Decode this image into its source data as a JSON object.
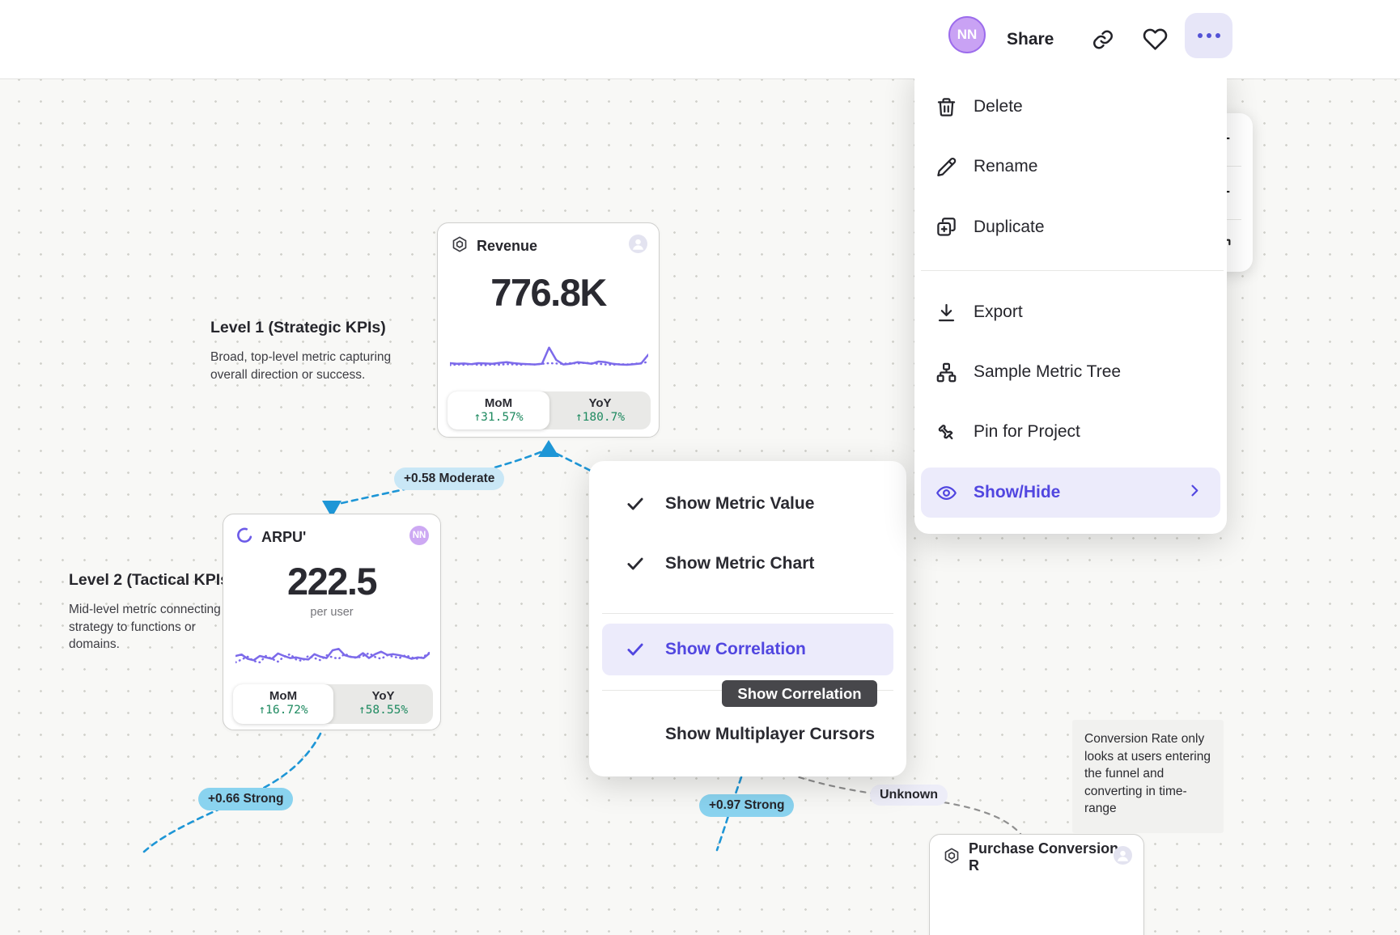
{
  "topbar": {
    "avatar": "NN",
    "share": "Share"
  },
  "menu": {
    "items": [
      {
        "label": "Delete"
      },
      {
        "label": "Rename"
      },
      {
        "label": "Duplicate"
      },
      {
        "label": "Export"
      },
      {
        "label": "Sample Metric Tree"
      },
      {
        "label": "Pin for Project"
      },
      {
        "label": "Show/Hide"
      }
    ]
  },
  "submenu": {
    "items": [
      {
        "label": "Show Metric Value",
        "checked": true
      },
      {
        "label": "Show Metric Chart",
        "checked": true
      },
      {
        "label": "Show Correlation",
        "checked": true,
        "active": true
      },
      {
        "label": "Show Multiplayer Cursors",
        "checked": false
      }
    ],
    "tooltip": "Show Correlation"
  },
  "zoom_controls": {
    "zoom_in": "+",
    "zoom_out": "−"
  },
  "canvas": {
    "level1": {
      "title": "Level 1 (Strategic KPIs)",
      "description": "Broad, top-level metric capturing overall direction or success."
    },
    "level2": {
      "title": "Level 2 (Tactical KPIs)",
      "description": "Mid-level metric connecting strategy to functions or domains."
    },
    "revenue": {
      "title": "Revenue",
      "value": "776.8K",
      "mom_label": "MoM",
      "mom_value": "↑31.57%",
      "yoy_label": "YoY",
      "yoy_value": "↑180.7%"
    },
    "arpu": {
      "title": "ARPU'",
      "badge": "NN",
      "value": "222.5",
      "unit": "per user",
      "mom_label": "MoM",
      "mom_value": "↑16.72%",
      "yoy_label": "YoY",
      "yoy_value": "↑58.55%"
    },
    "purchase": {
      "title": "Purchase Conversion R"
    },
    "correlations": {
      "c1": "+0.58 Moderate",
      "c2": "+0.66 Strong",
      "c3": "+0.97 Strong",
      "c4": "Unknown"
    },
    "note": "Conversion Rate only looks at users entering the funnel and converting in time-range"
  },
  "colors": {
    "accent": "#5146E0",
    "line": "#7C6AEA",
    "positive": "#1E8A60",
    "correlation_strong": "#8AD3EF",
    "correlation_moderate": "#C9E7F6",
    "edge_blue": "#1E96D6",
    "edge_gray": "#8F8F8F"
  },
  "chart_data": [
    {
      "type": "line",
      "name": "revenue-sparkline",
      "series": [
        {
          "name": "actual",
          "style": "solid",
          "values": [
            30,
            28,
            29,
            27,
            30,
            29,
            28,
            31,
            33,
            30,
            28,
            27,
            26,
            28,
            78,
            40,
            26,
            28,
            33,
            31,
            28,
            35,
            33,
            28,
            26,
            25,
            27,
            29,
            56
          ]
        },
        {
          "name": "baseline",
          "style": "dotted",
          "values": [
            24,
            26,
            25,
            27,
            25,
            24,
            26,
            25,
            27,
            26,
            25,
            27,
            26,
            28,
            30,
            29,
            28,
            30,
            29,
            31,
            30,
            28,
            26,
            25,
            27,
            26,
            28,
            30,
            34
          ]
        }
      ]
    },
    {
      "type": "line",
      "name": "arpu-sparkline",
      "series": [
        {
          "name": "actual",
          "style": "solid",
          "values": [
            50,
            54,
            42,
            38,
            50,
            46,
            42,
            57,
            50,
            44,
            46,
            42,
            40,
            55,
            48,
            44,
            66,
            70,
            52,
            47,
            46,
            58,
            44,
            55,
            62,
            53,
            55,
            52,
            48,
            42,
            46,
            44,
            58
          ]
        },
        {
          "name": "baseline",
          "style": "dotted",
          "values": [
            32,
            40,
            48,
            36,
            32,
            50,
            42,
            34,
            48,
            55,
            40,
            36,
            50,
            44,
            38,
            52,
            46,
            42,
            56,
            48,
            44,
            50,
            58,
            47,
            42,
            52,
            48,
            44,
            52,
            46,
            42,
            48,
            60
          ]
        }
      ]
    }
  ]
}
